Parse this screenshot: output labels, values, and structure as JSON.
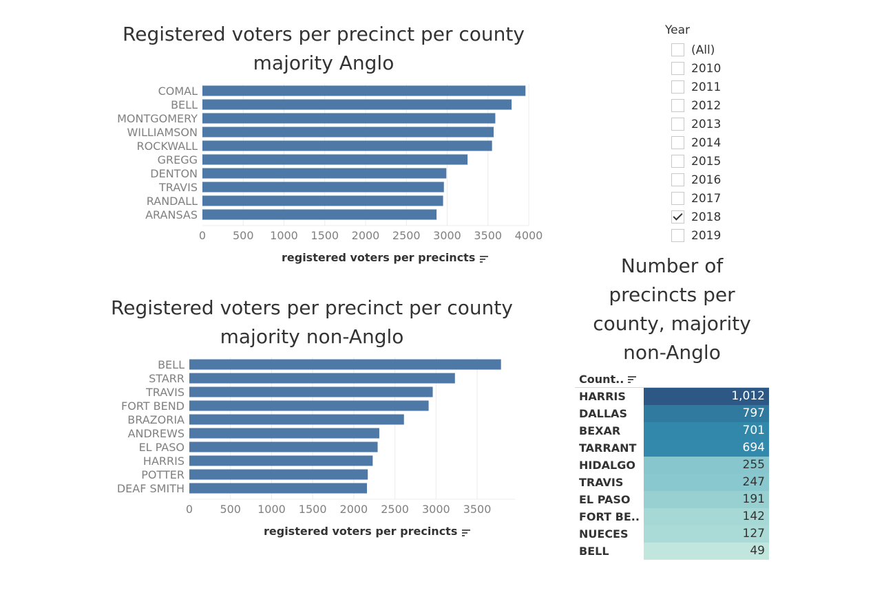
{
  "chart_anglo": {
    "title": "Registered voters per precinct per county\nmajority Anglo",
    "xlabel": "registered voters per precincts"
  },
  "chart_nonanglo": {
    "title": "Registered voters per precinct per county\nmajority non-Anglo",
    "xlabel": "registered voters per precincts"
  },
  "year_filter": {
    "title": "Year",
    "options": [
      {
        "label": "(All)",
        "checked": false
      },
      {
        "label": "2010",
        "checked": false
      },
      {
        "label": "2011",
        "checked": false
      },
      {
        "label": "2012",
        "checked": false
      },
      {
        "label": "2013",
        "checked": false
      },
      {
        "label": "2014",
        "checked": false
      },
      {
        "label": "2015",
        "checked": false
      },
      {
        "label": "2016",
        "checked": false
      },
      {
        "label": "2017",
        "checked": false
      },
      {
        "label": "2018",
        "checked": true
      },
      {
        "label": "2019",
        "checked": false
      }
    ]
  },
  "precinct_table": {
    "title": "Number of\nprecincts per\ncounty, majority\nnon-Anglo",
    "column_header": "Count.."
  },
  "colors": {
    "bar": "#4e79a7",
    "tick_text": "#808080",
    "grid": "#ececec"
  },
  "chart_data": [
    {
      "type": "bar",
      "orientation": "horizontal",
      "title": "Registered voters per precinct per county majority Anglo",
      "xlabel": "registered voters per precincts",
      "categories": [
        "COMAL",
        "BELL",
        "MONTGOMERY",
        "WILLIAMSON",
        "ROCKWALL",
        "GREGG",
        "DENTON",
        "TRAVIS",
        "RANDALL",
        "ARANSAS"
      ],
      "values": [
        3960,
        3790,
        3590,
        3570,
        3550,
        3250,
        2990,
        2960,
        2950,
        2870
      ],
      "xlim": [
        0,
        4000
      ],
      "ticks": [
        0,
        500,
        1000,
        1500,
        2000,
        2500,
        3000,
        3500,
        4000
      ],
      "grid": true
    },
    {
      "type": "bar",
      "orientation": "horizontal",
      "title": "Registered voters per precinct per county majority non-Anglo",
      "xlabel": "registered voters per precincts",
      "categories": [
        "BELL",
        "STARR",
        "TRAVIS",
        "FORT BEND",
        "BRAZORIA",
        "ANDREWS",
        "EL PASO",
        "HARRIS",
        "POTTER",
        "DEAF SMITH"
      ],
      "values": [
        3790,
        3230,
        2960,
        2910,
        2610,
        2310,
        2290,
        2230,
        2170,
        2160
      ],
      "xlim": [
        0,
        3960
      ],
      "ticks": [
        0,
        500,
        1000,
        1500,
        2000,
        2500,
        3000,
        3500
      ],
      "grid": true
    },
    {
      "type": "table",
      "title": "Number of precincts per county, majority non-Anglo",
      "columns": [
        "Count.."
      ],
      "rows": [
        {
          "label": "HARRIS",
          "display": "1,012",
          "value": 1012,
          "color": "#2d5885",
          "light": false
        },
        {
          "label": "DALLAS",
          "display": "797",
          "value": 797,
          "color": "#2f7a9e",
          "light": false
        },
        {
          "label": "BEXAR",
          "display": "701",
          "value": 701,
          "color": "#3188aa",
          "light": false
        },
        {
          "label": "TARRANT",
          "display": "694",
          "value": 694,
          "color": "#3389ab",
          "light": false
        },
        {
          "label": "HIDALGO",
          "display": "255",
          "value": 255,
          "color": "#88c6ce",
          "light": true
        },
        {
          "label": "TRAVIS",
          "display": "247",
          "value": 247,
          "color": "#8ac8cf",
          "light": true
        },
        {
          "label": "EL PASO",
          "display": "191",
          "value": 191,
          "color": "#98d0d1",
          "light": true
        },
        {
          "label": "FORT BE..",
          "display": "142",
          "value": 142,
          "color": "#a6d9d5",
          "light": true
        },
        {
          "label": "NUECES",
          "display": "127",
          "value": 127,
          "color": "#abdbd6",
          "light": true
        },
        {
          "label": "BELL",
          "display": "49",
          "value": 49,
          "color": "#c0e6de",
          "light": true
        }
      ]
    }
  ]
}
